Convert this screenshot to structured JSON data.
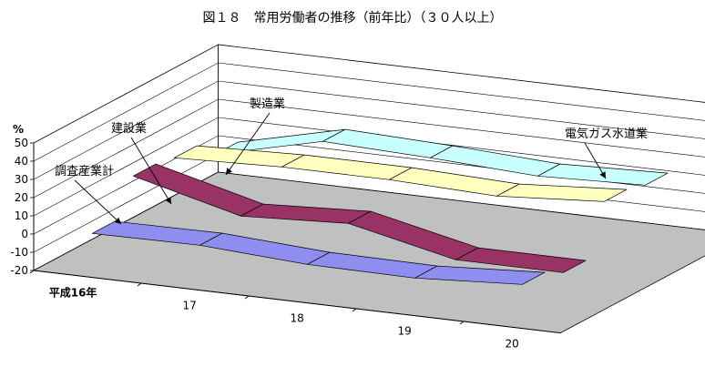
{
  "chart_data": {
    "type": "area",
    "title": "図１８　常用労働者の推移（前年比）（３０人以上）",
    "ylabel": "%",
    "ylim": [
      -20,
      50
    ],
    "yticks": [
      50,
      40,
      30,
      20,
      10,
      0,
      -10,
      -20
    ],
    "categories": [
      "平成16年",
      "17",
      "18",
      "19",
      "20"
    ],
    "series": [
      {
        "name": "調査産業計",
        "values": [
          0.5,
          1.0,
          -2.5,
          -3.0,
          0.5
        ],
        "color": "#8E8EF0"
      },
      {
        "name": "建設業",
        "values": [
          20,
          5,
          8,
          -5,
          -5
        ],
        "color": "#993366"
      },
      {
        "name": "製造業",
        "values": [
          18,
          20,
          20,
          18,
          22
        ],
        "color": "#FFFFC0"
      },
      {
        "name": "電気ガス水道業",
        "values": [
          8,
          22,
          20,
          17,
          19
        ],
        "color": "#C8FFFF"
      }
    ],
    "colors": {
      "floor": "#C0C0C0",
      "walls": "#FFFFFF",
      "grid": "#000000"
    }
  }
}
